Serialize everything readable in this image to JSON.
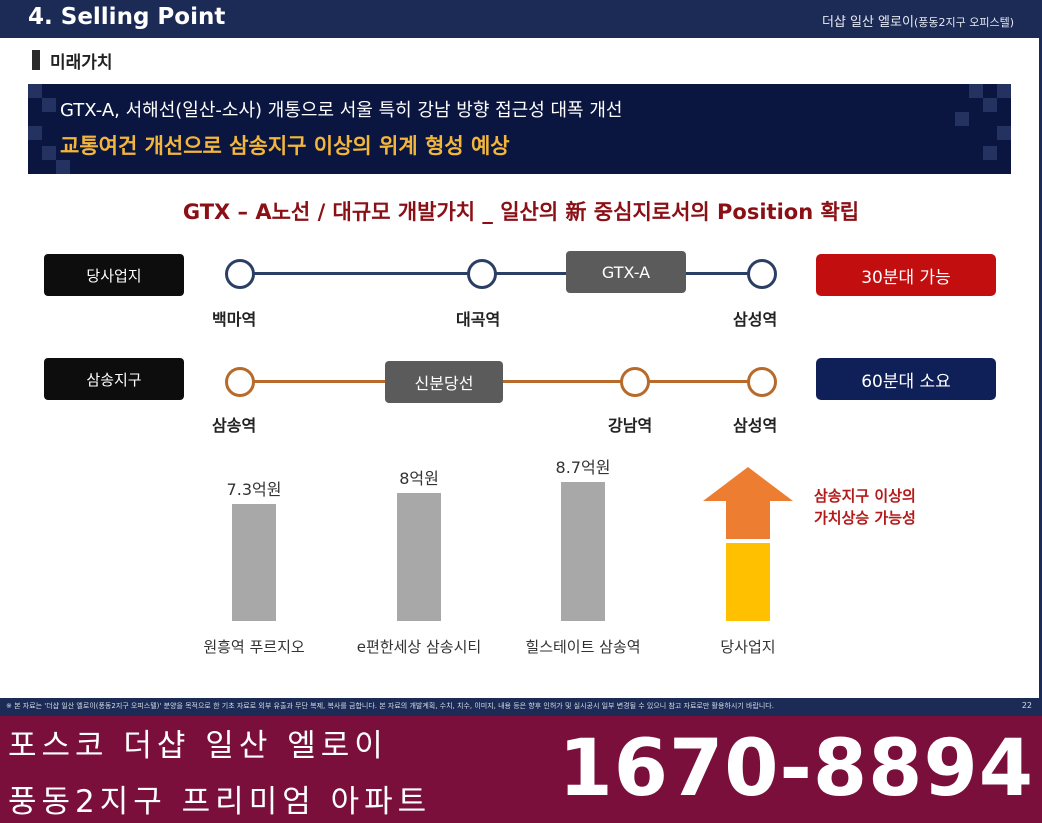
{
  "header": {
    "title": "4. Selling Point",
    "project_main": "더샵 일산 엘로이",
    "project_sub": "(풍동2지구 오피스텔)"
  },
  "section": {
    "label": "미래가치"
  },
  "banner": {
    "line1": "GTX-A, 서해선(일산-소사) 개통으로 서울 특히 강남 방향 접근성 대폭 개선",
    "line2": "교통여건 개선으로 삼송지구 이상의 위계 형성 예상"
  },
  "headline": "GTX – A노선 / 대규모 개발가치 _ 일산의 新 중심지로서의 Position 확립",
  "routes": [
    {
      "label": "당사업지",
      "line_name": "GTX-A",
      "color": "#2b3f66",
      "stations": [
        "백마역",
        "대곡역",
        "삼성역"
      ],
      "result": "30분대 가능",
      "result_color": "#c20e0e"
    },
    {
      "label": "삼송지구",
      "line_name": "신분당선",
      "color": "#b86a2a",
      "stations": [
        "삼송역",
        "강남역",
        "삼성역"
      ],
      "result": "60분대 소요",
      "result_color": "#0f1f57"
    }
  ],
  "chart_data": {
    "type": "bar",
    "categories": [
      "원흥역 푸르지오",
      "e편한세상 삼송시티",
      "힐스테이트 삼송역",
      "당사업지"
    ],
    "values": [
      7.3,
      8.0,
      8.7,
      null
    ],
    "value_labels": [
      "7.3억원",
      "8억원",
      "8.7억원",
      ""
    ],
    "ylim": [
      0,
      10
    ],
    "colors": [
      "#a8a8a8",
      "#a8a8a8",
      "#a8a8a8",
      "#ffc000"
    ],
    "arrow_color": "#ed7d31",
    "annotation": [
      "삼송지구 이상의",
      "가치상승 가능성"
    ]
  },
  "disclaimer": {
    "text": "※ 본 자료는 '더샵 일산 엘로이(풍동2지구 오피스텔)' 분양을 목적으로 한 기초 자료로 외부 유출과 무단 복제, 복사를 금합니다. 본 자료의 개발계획, 수치, 치수, 이미지, 내용 등은 향후 인허가 및 실시공시 일부 변경될 수 있으니 참고 자료로만 활용하시기 바랍니다.",
    "page": "22"
  },
  "footer": {
    "name_line1": "포스코 더샵 일산 엘로이",
    "name_line2": "풍동2지구 프리미엄 아파트",
    "phone": "1670-8894"
  }
}
